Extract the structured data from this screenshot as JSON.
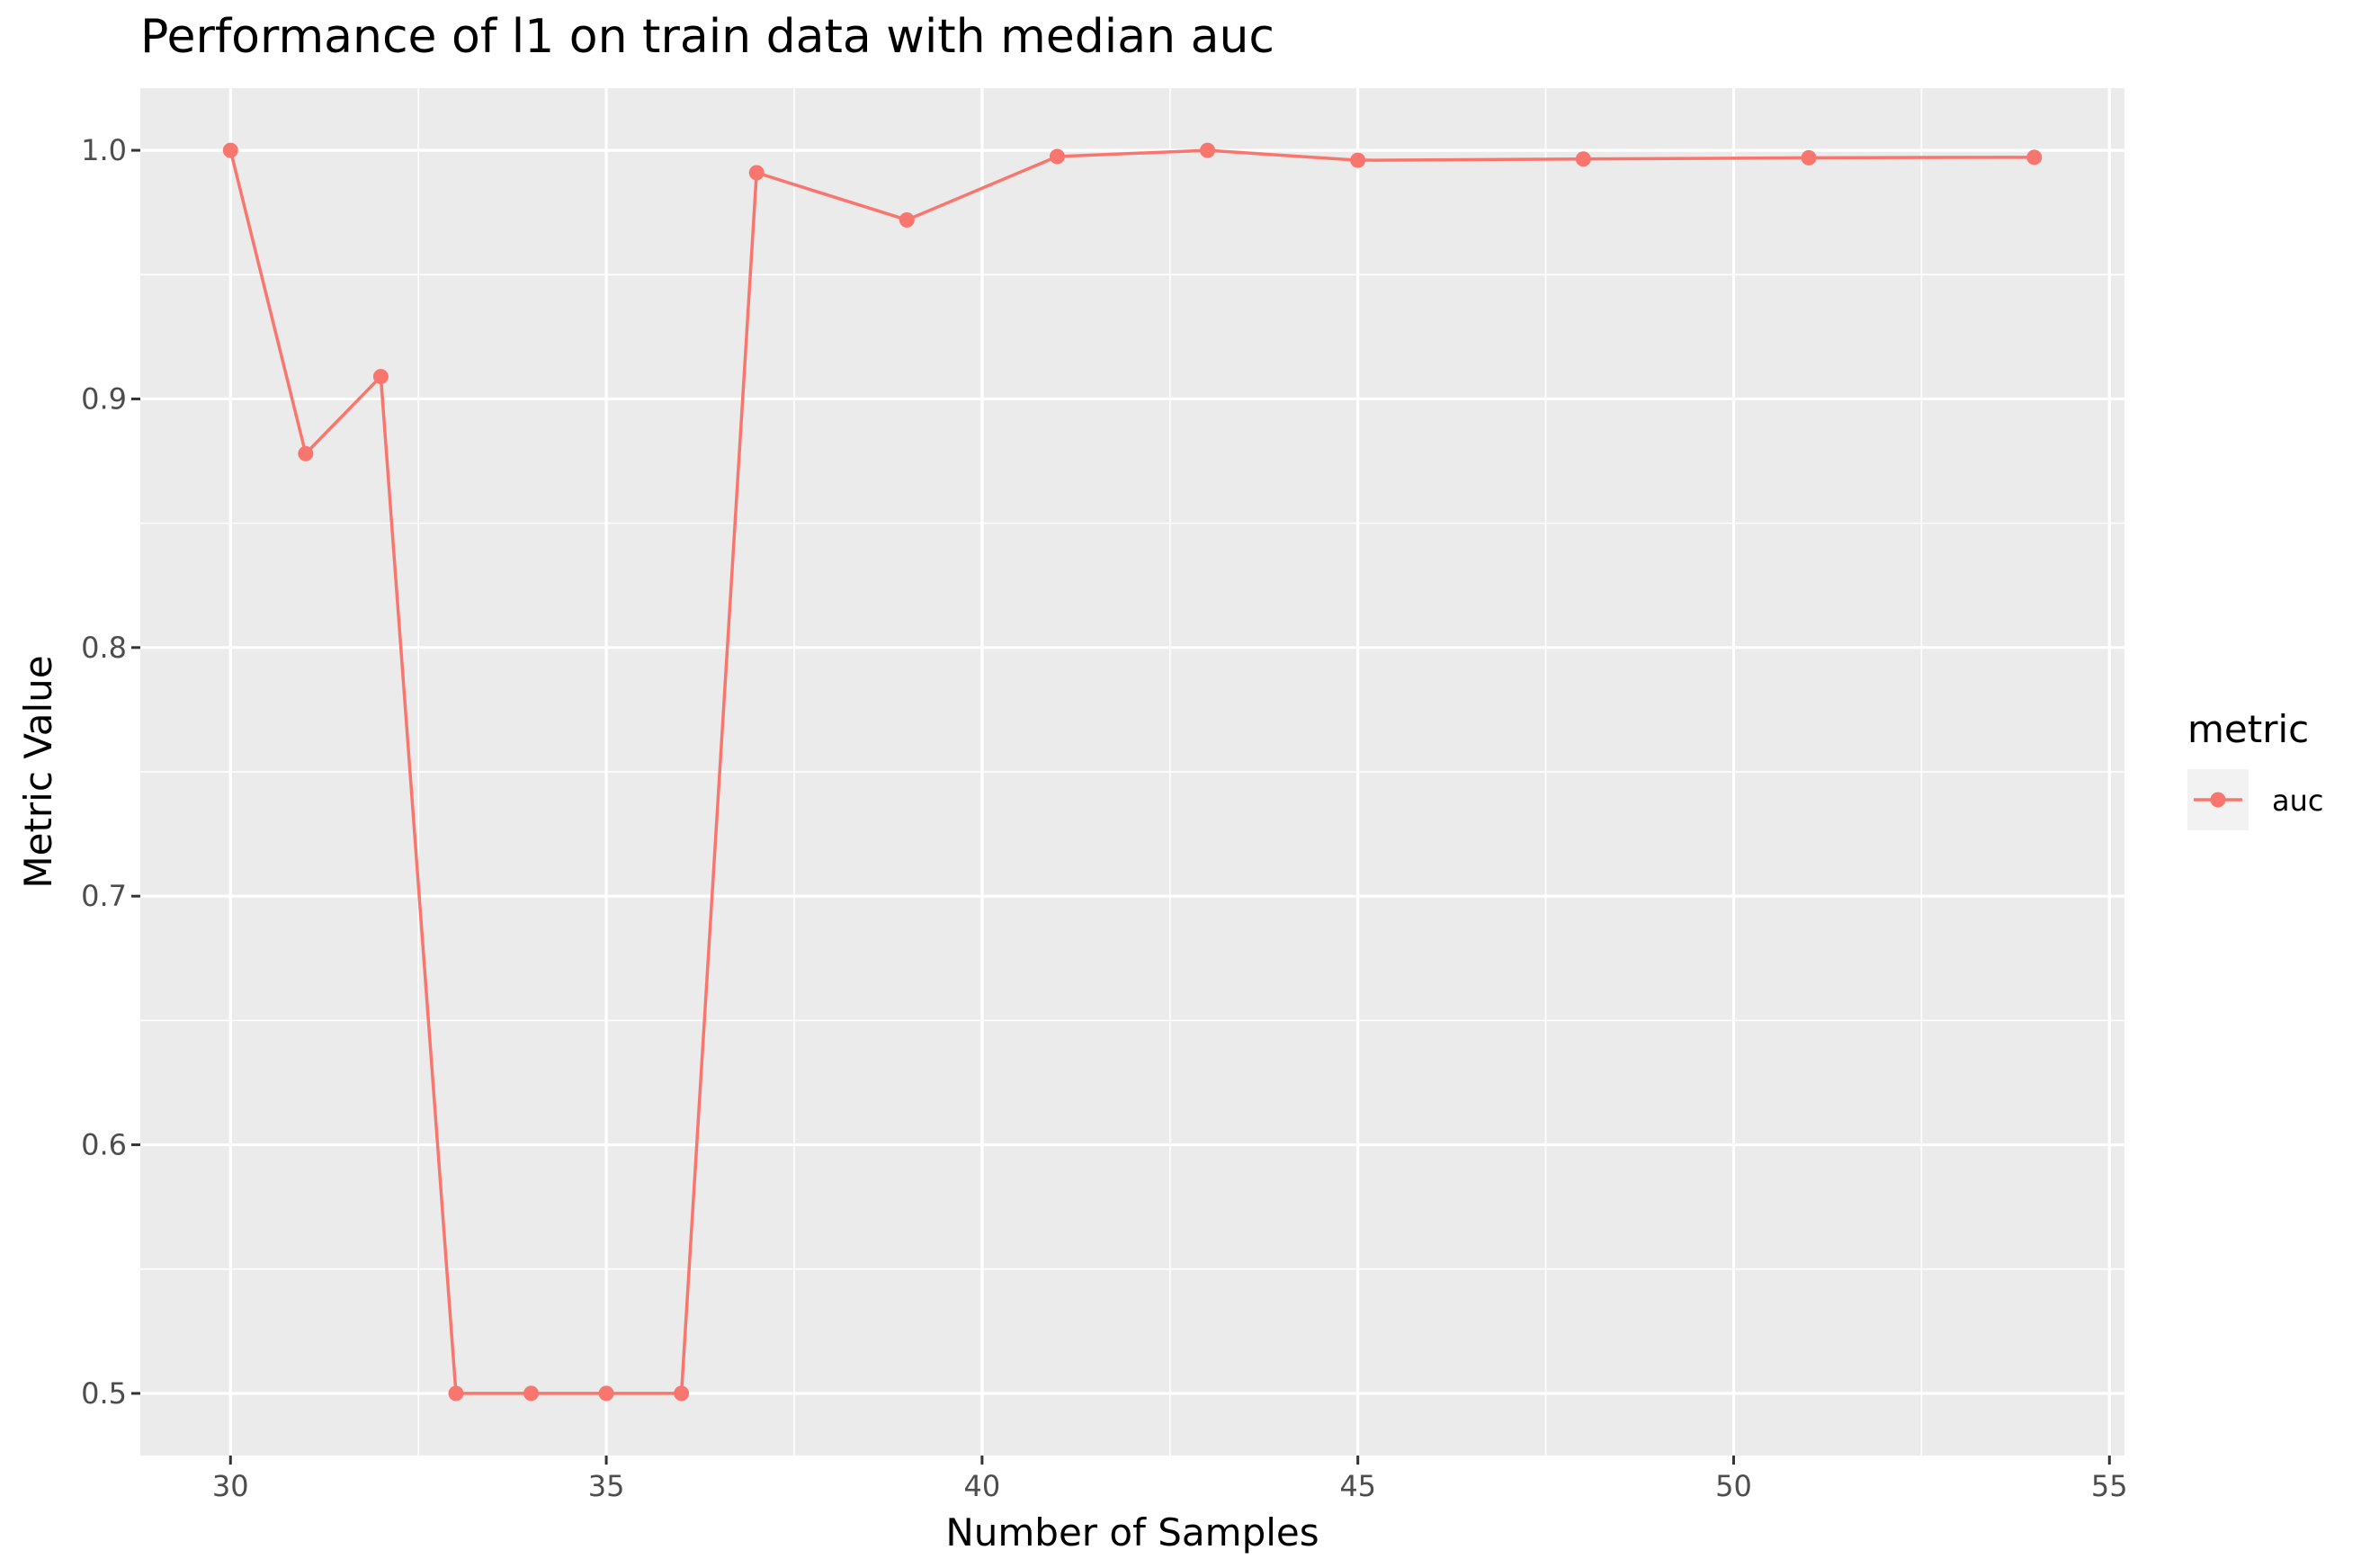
{
  "chart_data": {
    "type": "line",
    "title": "Performance of l1 on train data with median auc",
    "xlabel": "Number of Samples",
    "ylabel": "Metric Value",
    "xlim": [
      28.8,
      55.2
    ],
    "ylim": [
      0.475,
      1.025
    ],
    "x_ticks": [
      30,
      35,
      40,
      45,
      50,
      55
    ],
    "y_ticks": [
      0.5,
      0.6,
      0.7,
      0.8,
      0.9,
      1.0
    ],
    "x_tick_labels": [
      "30",
      "35",
      "40",
      "45",
      "50",
      "55"
    ],
    "y_tick_labels": [
      "0.5",
      "0.6",
      "0.7",
      "0.8",
      "0.9",
      "1.0"
    ],
    "grid": true,
    "legend": {
      "title": "metric",
      "position": "right"
    },
    "series": [
      {
        "name": "auc",
        "color": "#F8766D",
        "x": [
          30,
          31,
          32,
          33,
          34,
          35,
          36,
          37,
          39,
          41,
          43,
          45,
          48,
          51,
          54
        ],
        "y": [
          1.0,
          0.878,
          0.909,
          0.5,
          0.5,
          0.5,
          0.5,
          0.991,
          0.972,
          0.9975,
          1.0,
          0.996,
          0.9965,
          0.997,
          0.9972
        ]
      }
    ]
  }
}
